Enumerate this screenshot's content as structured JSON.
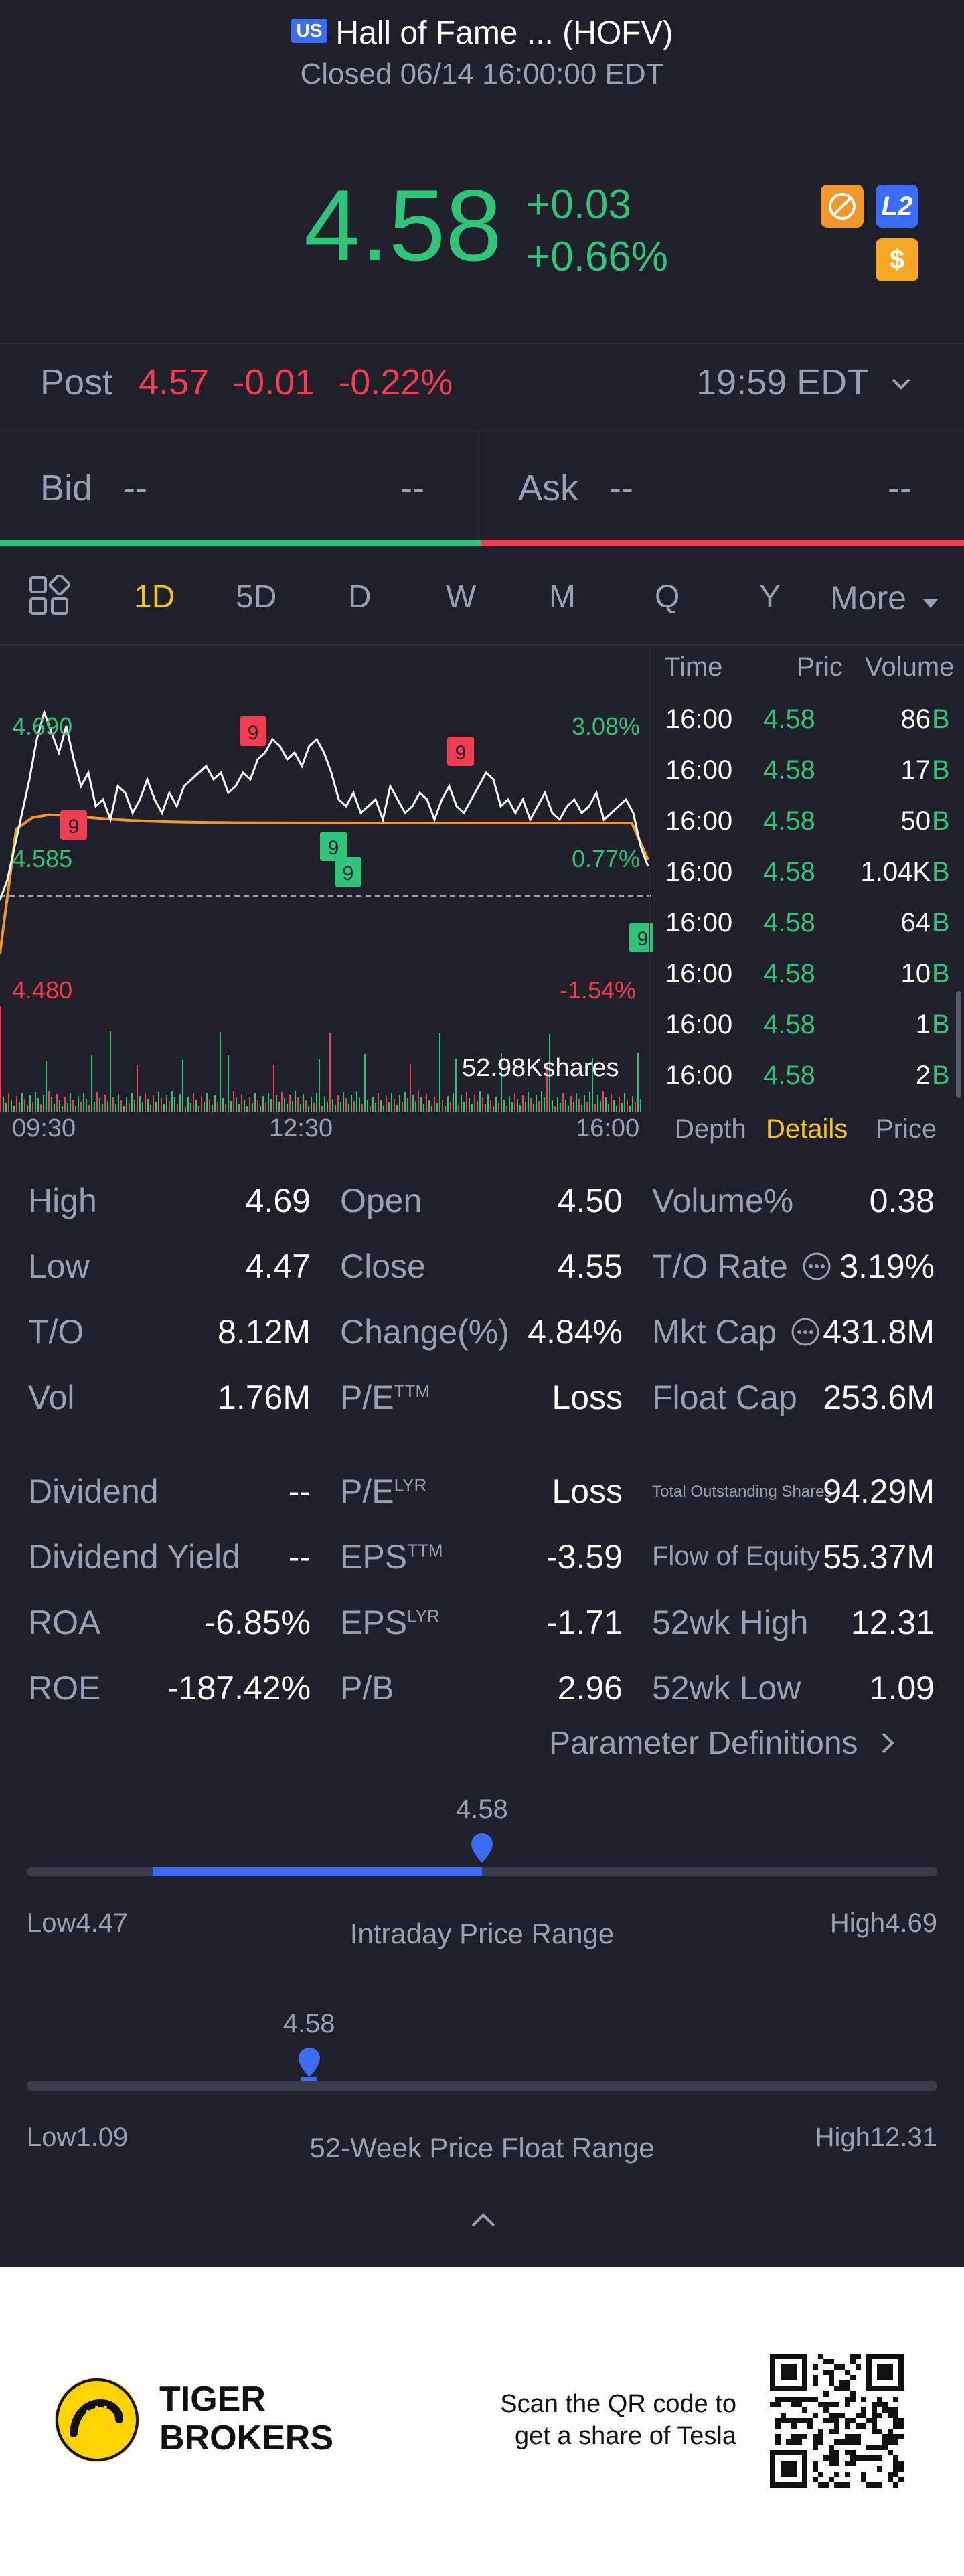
{
  "header": {
    "market_badge": "US",
    "title": "Hall of Fame ... (HOFV)",
    "status": "Closed 06/14 16:00:00 EDT"
  },
  "quote": {
    "price": "4.58",
    "change": "+0.03",
    "change_pct": "+0.66%",
    "icon_l2": "L2",
    "icon_dollar": "$"
  },
  "post": {
    "label": "Post",
    "price": "4.57",
    "change": "-0.01",
    "change_pct": "-0.22%",
    "time": "19:59 EDT"
  },
  "bidask": {
    "bid_label": "Bid",
    "bid_price": "--",
    "bid_size": "--",
    "ask_label": "Ask",
    "ask_price": "--",
    "ask_size": "--"
  },
  "tabs": [
    "1D",
    "5D",
    "D",
    "W",
    "M",
    "Q",
    "Y",
    "More"
  ],
  "active_tab": "1D",
  "chart": {
    "high_label": "4.690",
    "high_pct": "3.08%",
    "mid_label": "4.585",
    "mid_pct": "0.77%",
    "low_label": "4.480",
    "low_pct": "-1.54%",
    "volume_label": "52.98Kshares",
    "x_ticks": [
      "09:30",
      "12:30",
      "16:00"
    ],
    "badge_value": "9"
  },
  "trades": {
    "headers": [
      "Time",
      "Pric",
      "Volume"
    ],
    "rows": [
      {
        "time": "16:00",
        "price": "4.58",
        "vol": "86",
        "side": "B"
      },
      {
        "time": "16:00",
        "price": "4.58",
        "vol": "17",
        "side": "B"
      },
      {
        "time": "16:00",
        "price": "4.58",
        "vol": "50",
        "side": "B"
      },
      {
        "time": "16:00",
        "price": "4.58",
        "vol": "1.04K",
        "side": "B"
      },
      {
        "time": "16:00",
        "price": "4.58",
        "vol": "64",
        "side": "B"
      },
      {
        "time": "16:00",
        "price": "4.58",
        "vol": "10",
        "side": "B"
      },
      {
        "time": "16:00",
        "price": "4.58",
        "vol": "1",
        "side": "B"
      },
      {
        "time": "16:00",
        "price": "4.58",
        "vol": "2",
        "side": "B"
      }
    ],
    "subtabs": [
      "Depth",
      "Details",
      "Price"
    ],
    "active_subtab": "Details"
  },
  "stats": {
    "high_l": "High",
    "high_v": "4.69",
    "low_l": "Low",
    "low_v": "4.47",
    "to_l": "T/O",
    "to_v": "8.12M",
    "vol_l": "Vol",
    "vol_v": "1.76M",
    "open_l": "Open",
    "open_v": "4.50",
    "close_l": "Close",
    "close_v": "4.55",
    "chg_l": "Change(%)",
    "chg_v": "4.84%",
    "pe_l": "P/E",
    "pe_sup": "TTM",
    "pe_v": "Loss",
    "volpct_l": "Volume%",
    "volpct_v": "0.38",
    "torate_l": "T/O Rate",
    "torate_v": "3.19%",
    "mktcap_l": "Mkt Cap",
    "mktcap_v": "431.8M",
    "floatcap_l": "Float Cap",
    "floatcap_v": "253.6M",
    "div_l": "Dividend",
    "div_v": "--",
    "divy_l": "Dividend Yield",
    "divy_v": "--",
    "roa_l": "ROA",
    "roa_v": "-6.85%",
    "roe_l": "ROE",
    "roe_v": "-187.42%",
    "pelyr_l": "P/E",
    "pelyr_sup": "LYR",
    "pelyr_v": "Loss",
    "eps_l": "EPS",
    "eps_sup": "TTM",
    "eps_v": "-3.59",
    "epslyr_l": "EPS",
    "epslyr_sup": "LYR",
    "epslyr_v": "-1.71",
    "pb_l": "P/B",
    "pb_v": "2.96",
    "tos_l": "Total Outstanding Shares",
    "tos_v": "94.29M",
    "foe_l": "Flow of Equity",
    "foe_v": "55.37M",
    "wkh_l": "52wk High",
    "wkh_v": "12.31",
    "wkl_l": "52wk Low",
    "wkl_v": "1.09",
    "param_link": "Parameter Definitions"
  },
  "intraday": {
    "marker": "4.58",
    "low_label": "Low",
    "low_value": "4.47",
    "title": "Intraday Price Range",
    "high_label": "High",
    "high_value": "4.69",
    "position": 0.5
  },
  "week52": {
    "marker": "4.58",
    "low_label": "Low",
    "low_value": "1.09",
    "title": "52-Week Price Float Range",
    "high_label": "High",
    "high_value": "12.31",
    "position": 0.31
  },
  "footer": {
    "brand_line1": "TIGER",
    "brand_line2": "BROKERS",
    "qr_line1": "Scan the QR code to",
    "qr_line2": "get a share of Tesla"
  },
  "colors": {
    "up": "#2ec47a",
    "down": "#f23c50",
    "accent": "#f5c518",
    "blue": "#3a6cf4",
    "bg": "#1f2029"
  }
}
